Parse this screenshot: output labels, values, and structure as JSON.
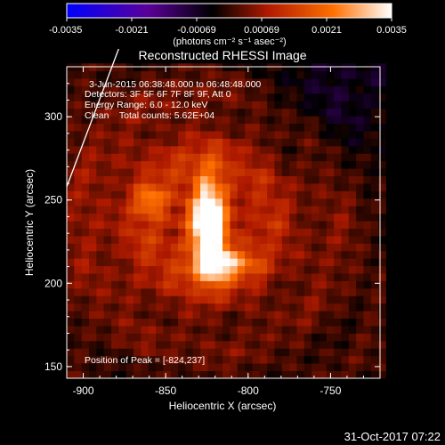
{
  "colorbar": {
    "ticks": [
      "-0.0035",
      "-0.0021",
      "-0.00069",
      "0.00069",
      "0.0021",
      "0.0035"
    ],
    "unit_label": "(photons cm⁻² s⁻¹ asec⁻²)"
  },
  "title": "Reconstructed RHESSI Image",
  "annotations": {
    "time_range": "3-Jun-2015 06:38:48.000 to 06:48:48.000",
    "detectors": "Detectors: 3F 5F 6F 7F 8F 9F, Att 0",
    "energy_range": "Energy Range: 6.0 - 12.0 keV",
    "clean_counts": "Clean    Total counts: 5.62E+04",
    "peak": "Position of Peak = [-824,237]"
  },
  "footer_timestamp": "31-Oct-2017 07:22",
  "chart_data": {
    "type": "heatmap",
    "title": "Reconstructed RHESSI Image",
    "xlabel": "Heliocentric X (arcsec)",
    "ylabel": "Heliocentric Y (arcsec)",
    "xlim": [
      -910,
      -720
    ],
    "ylim": [
      143,
      330
    ],
    "x_ticks": [
      -900,
      -850,
      -800,
      -750
    ],
    "x_tick_labels": [
      "-900",
      "-850",
      "-800",
      "-750"
    ],
    "y_ticks": [
      150,
      200,
      250,
      300
    ],
    "y_tick_labels": [
      "150",
      "200",
      "250",
      "300"
    ],
    "color_range": [
      -0.0035,
      0.0035
    ],
    "colormap": [
      "#0000ff",
      "#4a007a",
      "#000000",
      "#aa1800",
      "#ff7000",
      "#ffffff"
    ],
    "peak_position": [
      -824,
      237
    ],
    "limb_line": [
      [
        -910,
        258
      ],
      [
        -885,
        330
      ]
    ],
    "sources": [
      {
        "x": -824,
        "y": 237,
        "amp": 0.0036,
        "sx": 7,
        "sy": 20
      },
      {
        "x": -816,
        "y": 212,
        "amp": 0.0024,
        "sx": 12,
        "sy": 7
      },
      {
        "x": -858,
        "y": 250,
        "amp": 0.0011,
        "sx": 7,
        "sy": 7
      },
      {
        "x": -830,
        "y": 240,
        "amp": 0.0012,
        "sx": 55,
        "sy": 45
      }
    ]
  }
}
